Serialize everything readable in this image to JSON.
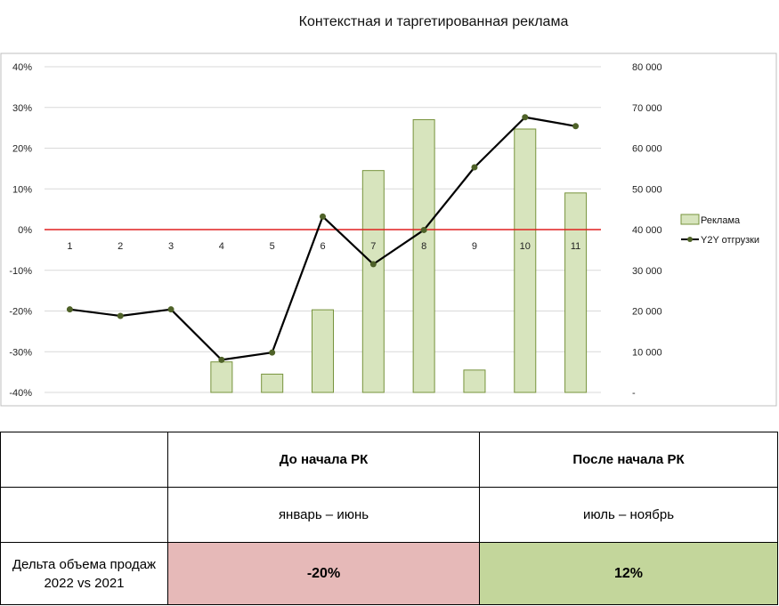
{
  "chart_data": {
    "type": "bar+line",
    "title": "Контекстная и таргетированная реклама",
    "categories": [
      "1",
      "2",
      "3",
      "4",
      "5",
      "6",
      "7",
      "8",
      "9",
      "10",
      "11"
    ],
    "left_axis": {
      "min": -0.4,
      "max": 0.4,
      "ticks": [
        "-40%",
        "-30%",
        "-20%",
        "-10%",
        "0%",
        "10%",
        "20%",
        "30%",
        "40%"
      ]
    },
    "right_axis": {
      "min": 0,
      "max": 80000,
      "ticks": [
        "-",
        "10 000",
        "20 000",
        "30 000",
        "40 000",
        "50 000",
        "60 000",
        "70 000",
        "80 000"
      ]
    },
    "series": [
      {
        "name": "Реклама",
        "kind": "bar",
        "axis": "right",
        "values": [
          0,
          0,
          0,
          7500,
          4500,
          20300,
          54500,
          67000,
          5500,
          64700,
          49000
        ]
      },
      {
        "name": "Y2Y отгрузки",
        "kind": "line",
        "axis": "left",
        "values": [
          -0.196,
          -0.212,
          -0.196,
          -0.32,
          -0.302,
          0.032,
          -0.085,
          -0.001,
          0.153,
          0.276,
          0.254
        ]
      }
    ],
    "zero_line": true,
    "legend_position": "right",
    "colors": {
      "bar_fill": "#d7e4bd",
      "bar_stroke": "#77933c",
      "line": "#000000",
      "marker": "#4f6228",
      "zero_line": "#e02020",
      "grid": "#d9d9d9"
    }
  },
  "table": {
    "header": [
      "",
      "До начала РК",
      "После начала РК"
    ],
    "periods": [
      "",
      "январь – июнь",
      "июль – ноябрь"
    ],
    "metric": {
      "label_line1": "Дельта объема продаж",
      "label_line2": "2022 vs 2021",
      "before": "-20%",
      "after": "12%"
    },
    "colors": {
      "before_bg": "#e6b9b8",
      "after_bg": "#c3d69b"
    }
  }
}
